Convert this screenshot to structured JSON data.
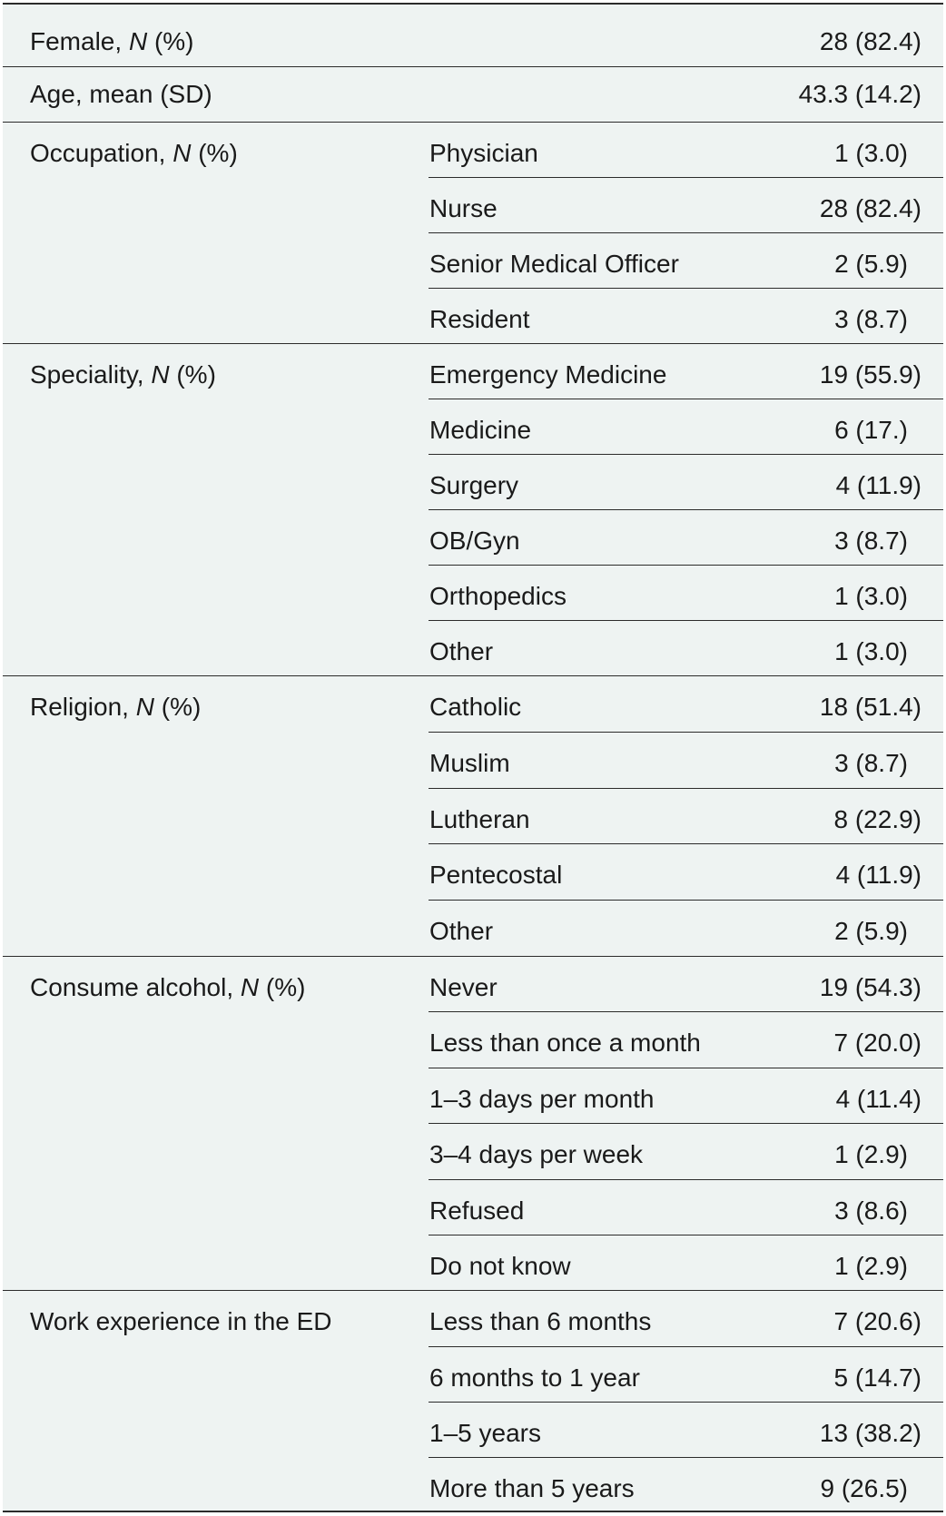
{
  "rows": [
    {
      "label": "Female, ",
      "label_italic": "N",
      "label_tail": " (%)",
      "sub": "",
      "value": "28 (82.4)"
    },
    {
      "label": "Age, mean (SD)",
      "label_italic": "",
      "label_tail": "",
      "sub": "",
      "value": "43.3 (14.2)"
    },
    {
      "label": "Occupation, ",
      "label_italic": "N",
      "label_tail": " (%)",
      "sub": "Physician",
      "value": "1 (3.0)"
    },
    {
      "label": "",
      "sub": "Nurse",
      "value": "28 (82.4)"
    },
    {
      "label": "",
      "sub": "Senior Medical Officer",
      "value": "2 (5.9)"
    },
    {
      "label": "",
      "sub": "Resident",
      "value": "3 (8.7)"
    },
    {
      "label": "Speciality, ",
      "label_italic": "N",
      "label_tail": " (%)",
      "sub": "Emergency Medicine",
      "value": "19 (55.9)"
    },
    {
      "label": "",
      "sub": "Medicine",
      "value": "6 (17.)"
    },
    {
      "label": "",
      "sub": "Surgery",
      "value": "4 (11.9)"
    },
    {
      "label": "",
      "sub": "OB/Gyn",
      "value": "3 (8.7)"
    },
    {
      "label": "",
      "sub": "Orthopedics",
      "value": "1 (3.0)"
    },
    {
      "label": "",
      "sub": "Other",
      "value": "1 (3.0)"
    },
    {
      "label": "Religion, ",
      "label_italic": "N",
      "label_tail": " (%)",
      "sub": "Catholic",
      "value": "18 (51.4)"
    },
    {
      "label": "",
      "sub": "Muslim",
      "value": "3 (8.7)"
    },
    {
      "label": "",
      "sub": "Lutheran",
      "value": "8 (22.9)"
    },
    {
      "label": "",
      "sub": "Pentecostal",
      "value": "4 (11.9)"
    },
    {
      "label": "",
      "sub": "Other",
      "value": "2 (5.9)"
    },
    {
      "label": "Consume alcohol, ",
      "label_italic": "N",
      "label_tail": " (%)",
      "sub": "Never",
      "value": "19 (54.3)"
    },
    {
      "label": "",
      "sub": "Less than once a month",
      "value": "7 (20.0)"
    },
    {
      "label": "",
      "sub": "1–3 days per month",
      "value": "4 (11.4)"
    },
    {
      "label": "",
      "sub": "3–4 days per week",
      "value": "1 (2.9)"
    },
    {
      "label": "",
      "sub": "Refused",
      "value": "3 (8.6)"
    },
    {
      "label": "",
      "sub": "Do not know",
      "value": "1 (2.9)"
    },
    {
      "label": "Work experience in the ED",
      "label_italic": "",
      "label_tail": "",
      "sub": "Less than 6 months",
      "value": "7 (20.6)"
    },
    {
      "label": "",
      "sub": "6 months to 1 year",
      "value": "5 (14.7)"
    },
    {
      "label": "",
      "sub": "1–5 years",
      "value": "13 (38.2)"
    },
    {
      "label": "",
      "sub": "More than 5 years",
      "value": "9 (26.5)"
    }
  ]
}
